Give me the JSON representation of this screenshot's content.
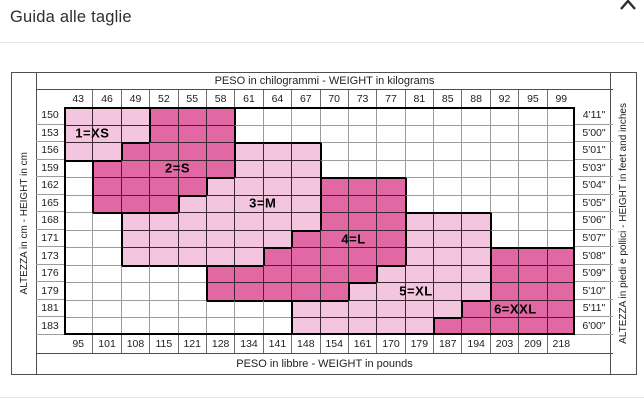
{
  "page": {
    "title": "Guida alle taglie"
  },
  "chart_data": {
    "type": "heatmap",
    "title_top": "PESO in chilogrammi -  WEIGHT in kilograms",
    "title_bottom": "PESO in libbre -  WEIGHT in pounds",
    "axis_left": "ALTEZZA in cm  -  HEIGHT in cm",
    "axis_right": "ALTEZZA in piedi e pollici - HEIGHT in feet and inches",
    "kg": [
      43,
      46,
      49,
      52,
      55,
      58,
      61,
      64,
      67,
      70,
      73,
      77,
      81,
      85,
      88,
      92,
      95,
      99
    ],
    "lb": [
      95,
      101,
      108,
      115,
      121,
      128,
      134,
      141,
      148,
      154,
      161,
      170,
      179,
      187,
      194,
      203,
      209,
      218
    ],
    "cm": [
      150,
      153,
      156,
      159,
      162,
      165,
      168,
      171,
      173,
      176,
      179,
      181,
      183
    ],
    "ft_in": [
      "4'11\"",
      "5'00\"",
      "5'01\"",
      "5'03\"",
      "5'04\"",
      "5'05\"",
      "5'06\"",
      "5'07\"",
      "5'08\"",
      "5'09\"",
      "5'10\"",
      "5'11\"",
      "6'00\""
    ],
    "sizes": [
      {
        "label": "1=XS",
        "row": 1,
        "col": 1.0
      },
      {
        "label": "2=S",
        "row": 3,
        "col": 4.0
      },
      {
        "label": "3=M",
        "row": 5,
        "col": 7.0
      },
      {
        "label": "4=L",
        "row": 7,
        "col": 10.2
      },
      {
        "label": "5=XL",
        "row": 10,
        "col": 12.4
      },
      {
        "label": "6=XXL",
        "row": 11,
        "col": 15.9
      }
    ],
    "zone_map": [
      "111222000000000000",
      "111222000000000000",
      "112222333000000000",
      "022222333000000000",
      "022223333444000000",
      "022233333444000000",
      "003333333444555000",
      "003333334444555000",
      "003333344444555666",
      "000004444445555666",
      "000004444455555666",
      "000000005555556666",
      "000000005555566666"
    ],
    "colors": {
      "light_pink": "#F4C5DF",
      "dark_pink": "#E268A4"
    }
  }
}
